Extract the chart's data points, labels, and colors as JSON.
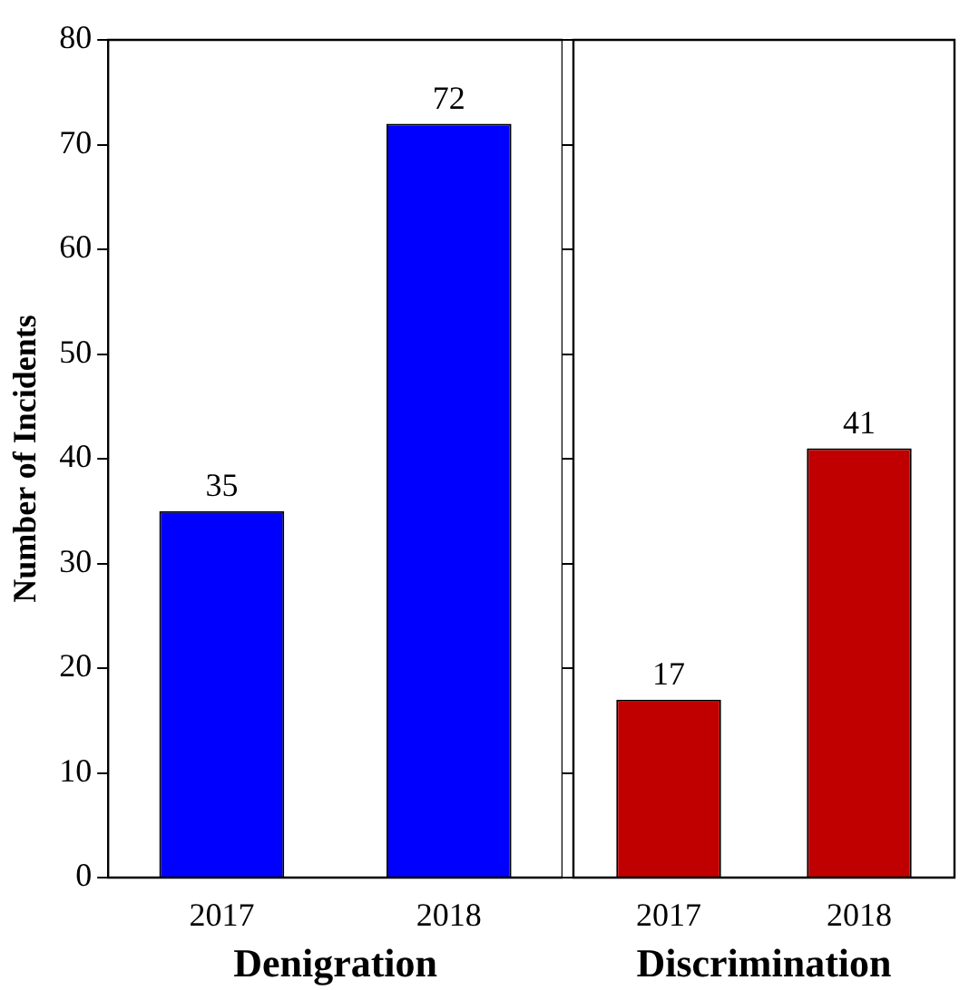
{
  "chart_data": [
    {
      "type": "bar",
      "categories": [
        "2017",
        "2018"
      ],
      "values": [
        35,
        72
      ],
      "color": "#0000ff",
      "xlabel": "Denigration",
      "ylabel": "Number of Incidents",
      "ylim": [
        0,
        80
      ],
      "yticks": [
        0,
        10,
        20,
        30,
        40,
        50,
        60,
        70,
        80
      ],
      "data_labels": true,
      "grid": false,
      "legend": false
    },
    {
      "type": "bar",
      "categories": [
        "2017",
        "2018"
      ],
      "values": [
        17,
        41
      ],
      "color": "#c00000",
      "xlabel": "Discrimination",
      "ylim": [
        0,
        80
      ],
      "yticks": [
        0,
        10,
        20,
        30,
        40,
        50,
        60,
        70,
        80
      ],
      "data_labels": true,
      "grid": false,
      "legend": false,
      "tick_labels": "x"
    }
  ]
}
